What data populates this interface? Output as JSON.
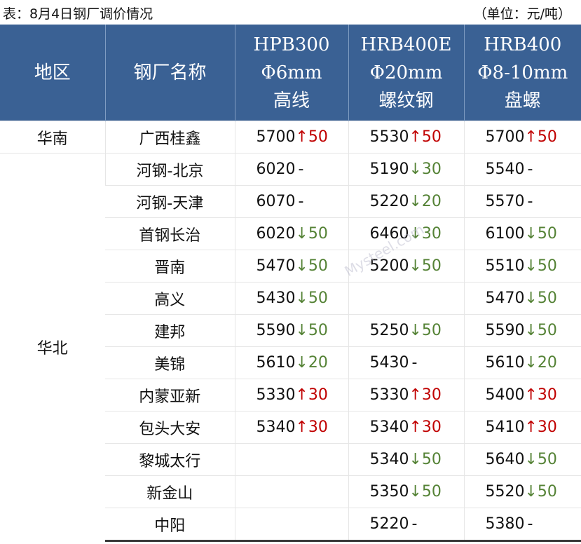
{
  "title": "表：8月4日钢厂调价情况",
  "unit": "（单位：元/吨）",
  "headers": {
    "region": "地区",
    "mill": "钢厂名称",
    "col1": [
      "HPB300",
      "Φ6mm",
      "高线"
    ],
    "col2": [
      "HRB400E",
      "Φ20mm",
      "螺纹钢"
    ],
    "col3": [
      "HRB400",
      "Φ8-10mm",
      "盘螺"
    ]
  },
  "colors": {
    "header_bg": "#3a6194",
    "up": "#c00000",
    "down": "#548235"
  },
  "watermark": "Mysteel.com 我的钢铁",
  "groups": [
    {
      "region": "华南",
      "rows": [
        {
          "mill": "广西桂鑫",
          "cells": [
            {
              "price": "5700",
              "change": "↑50"
            },
            {
              "price": "5530",
              "change": "↑50"
            },
            {
              "price": "5700",
              "change": "↑50"
            }
          ]
        }
      ]
    },
    {
      "region": "华北",
      "rows": [
        {
          "mill": "河钢-北京",
          "cells": [
            {
              "price": "6020",
              "change": "-"
            },
            {
              "price": "5190",
              "change": "↓30"
            },
            {
              "price": "5540",
              "change": "-"
            }
          ]
        },
        {
          "mill": "河钢-天津",
          "cells": [
            {
              "price": "6070",
              "change": "-"
            },
            {
              "price": "5220",
              "change": "↓20"
            },
            {
              "price": "5570",
              "change": "-"
            }
          ]
        },
        {
          "mill": "首钢长治",
          "cells": [
            {
              "price": "6020",
              "change": "↓50"
            },
            {
              "price": "6460",
              "change": "↓30"
            },
            {
              "price": "6100",
              "change": "↓50"
            }
          ]
        },
        {
          "mill": "晋南",
          "cells": [
            {
              "price": "5470",
              "change": "↓50"
            },
            {
              "price": "5200",
              "change": "↓50"
            },
            {
              "price": "5510",
              "change": "↓50"
            }
          ]
        },
        {
          "mill": "高义",
          "cells": [
            {
              "price": "5430",
              "change": "↓50"
            },
            {
              "price": "",
              "change": ""
            },
            {
              "price": "5470",
              "change": "↓50"
            }
          ]
        },
        {
          "mill": "建邦",
          "cells": [
            {
              "price": "5590",
              "change": "↓50"
            },
            {
              "price": "5250",
              "change": "↓50"
            },
            {
              "price": "5590",
              "change": "↓50"
            }
          ]
        },
        {
          "mill": "美锦",
          "cells": [
            {
              "price": "5610",
              "change": "↓20"
            },
            {
              "price": "5430",
              "change": "-"
            },
            {
              "price": "5610",
              "change": "↓20"
            }
          ]
        },
        {
          "mill": "内蒙亚新",
          "cells": [
            {
              "price": "5330",
              "change": "↑30"
            },
            {
              "price": "5330",
              "change": "↑30"
            },
            {
              "price": "5400",
              "change": "↑30"
            }
          ]
        },
        {
          "mill": "包头大安",
          "cells": [
            {
              "price": "5340",
              "change": "↑30"
            },
            {
              "price": "5340",
              "change": "↑30"
            },
            {
              "price": "5410",
              "change": "↑30"
            }
          ]
        },
        {
          "mill": "黎城太行",
          "cells": [
            {
              "price": "",
              "change": ""
            },
            {
              "price": "5340",
              "change": "↓50"
            },
            {
              "price": "5640",
              "change": "↓50"
            }
          ]
        },
        {
          "mill": "新金山",
          "cells": [
            {
              "price": "",
              "change": ""
            },
            {
              "price": "5350",
              "change": "↓50"
            },
            {
              "price": "5520",
              "change": "↓50"
            }
          ]
        },
        {
          "mill": "中阳",
          "cells": [
            {
              "price": "",
              "change": ""
            },
            {
              "price": "5220",
              "change": "-"
            },
            {
              "price": "5380",
              "change": "-"
            }
          ]
        }
      ]
    }
  ]
}
